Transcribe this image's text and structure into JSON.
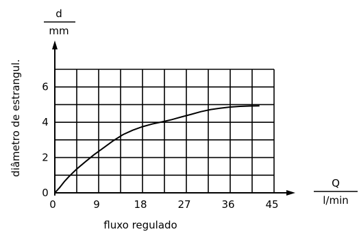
{
  "chart_data": {
    "type": "line",
    "xlabel": "fluxo regulado",
    "ylabel": "diâmetro de estrangul.",
    "x_unit": {
      "numerator": "Q",
      "denominator": "l/min"
    },
    "y_unit": {
      "numerator": "d",
      "denominator": "mm"
    },
    "x_ticks": [
      "0",
      "9",
      "18",
      "27",
      "36",
      "45"
    ],
    "y_ticks": [
      "0",
      "2",
      "4",
      "6"
    ],
    "xlim": [
      0,
      45
    ],
    "ylim": [
      0,
      7
    ],
    "grid": true,
    "series": [
      {
        "x": [
          0,
          1,
          2,
          3,
          4.5,
          6,
          8,
          10,
          12,
          14,
          16,
          18,
          20,
          22,
          24,
          26,
          28,
          30,
          32,
          34,
          36,
          38,
          40,
          42
        ],
        "y": [
          0,
          0.3,
          0.65,
          0.95,
          1.35,
          1.7,
          2.15,
          2.55,
          2.95,
          3.3,
          3.55,
          3.75,
          3.9,
          4.02,
          4.15,
          4.3,
          4.45,
          4.6,
          4.72,
          4.8,
          4.86,
          4.9,
          4.92,
          4.93
        ]
      }
    ]
  }
}
